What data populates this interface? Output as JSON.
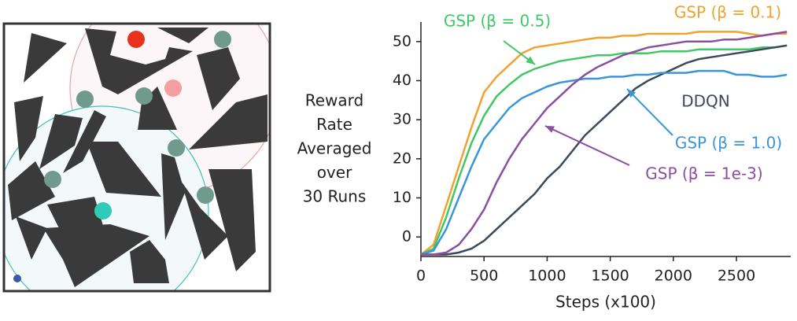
{
  "chart_data": {
    "type": "line",
    "ylabel": [
      "Reward",
      "Rate",
      "Averaged",
      "over",
      "30 Runs"
    ],
    "xlabel": "Steps (x100)",
    "x": [
      0,
      100,
      200,
      300,
      400,
      500,
      600,
      700,
      800,
      900,
      1000,
      1100,
      1200,
      1300,
      1400,
      1500,
      1600,
      1700,
      1800,
      1900,
      2000,
      2100,
      2200,
      2300,
      2400,
      2500,
      2600,
      2700,
      2800,
      2900
    ],
    "series": [
      {
        "name": "GSP (β = 0.1)",
        "color": "#f0a22e",
        "values": [
          -4.5,
          -2,
          8,
          18,
          28,
          37,
          41,
          44,
          47,
          48.5,
          49,
          49.5,
          50,
          50.5,
          51,
          51,
          51.5,
          51.5,
          52,
          52,
          52,
          52,
          52.5,
          52.5,
          52.5,
          52.5,
          52,
          51.5,
          52,
          52
        ]
      },
      {
        "name": "GSP (β = 0.5)",
        "color": "#3ec866",
        "values": [
          -4.5,
          -3,
          5,
          15,
          24,
          31,
          36,
          39,
          41.5,
          43,
          44,
          45,
          45.5,
          46,
          46.5,
          46.5,
          47,
          47,
          47,
          47.5,
          47.5,
          47.5,
          48,
          48,
          48,
          48,
          48,
          48.5,
          48.5,
          49
        ]
      },
      {
        "name": "DDQN",
        "color": "#3b4a5a",
        "values": [
          -4.5,
          -4.5,
          -4.5,
          -4,
          -3,
          -1,
          2,
          5,
          8,
          11,
          15,
          18,
          22,
          26,
          29,
          32,
          35,
          38,
          40,
          41.5,
          43,
          44.5,
          45.5,
          46,
          46.5,
          47,
          47.5,
          48,
          48.5,
          49
        ]
      },
      {
        "name": "GSP (β = 1.0)",
        "color": "#3a96d8",
        "values": [
          -4.5,
          -3.5,
          2,
          10,
          18,
          25,
          29,
          33,
          35.5,
          37,
          38.5,
          39.5,
          40,
          40.5,
          40.5,
          41,
          41,
          41.5,
          41.5,
          42,
          42,
          42,
          42.5,
          42.5,
          42.5,
          41.5,
          41.5,
          41,
          41,
          41.5
        ]
      },
      {
        "name": "GSP (β = 1e-3)",
        "color": "#8a4fa0",
        "values": [
          -4.5,
          -4.5,
          -4,
          -2,
          2,
          7,
          14,
          20,
          25,
          29,
          33,
          36,
          39,
          41.5,
          43.5,
          45,
          46.5,
          47.5,
          48.5,
          49,
          49.5,
          50,
          50,
          50,
          50.5,
          50.5,
          51,
          51.5,
          52,
          52.5
        ]
      }
    ],
    "xlim": [
      0,
      2930
    ],
    "xticks": [
      0,
      500,
      1000,
      1500,
      2000,
      2500
    ],
    "ylim": [
      -5,
      55
    ],
    "yticks": [
      0,
      10,
      20,
      30,
      40,
      50
    ]
  }
}
